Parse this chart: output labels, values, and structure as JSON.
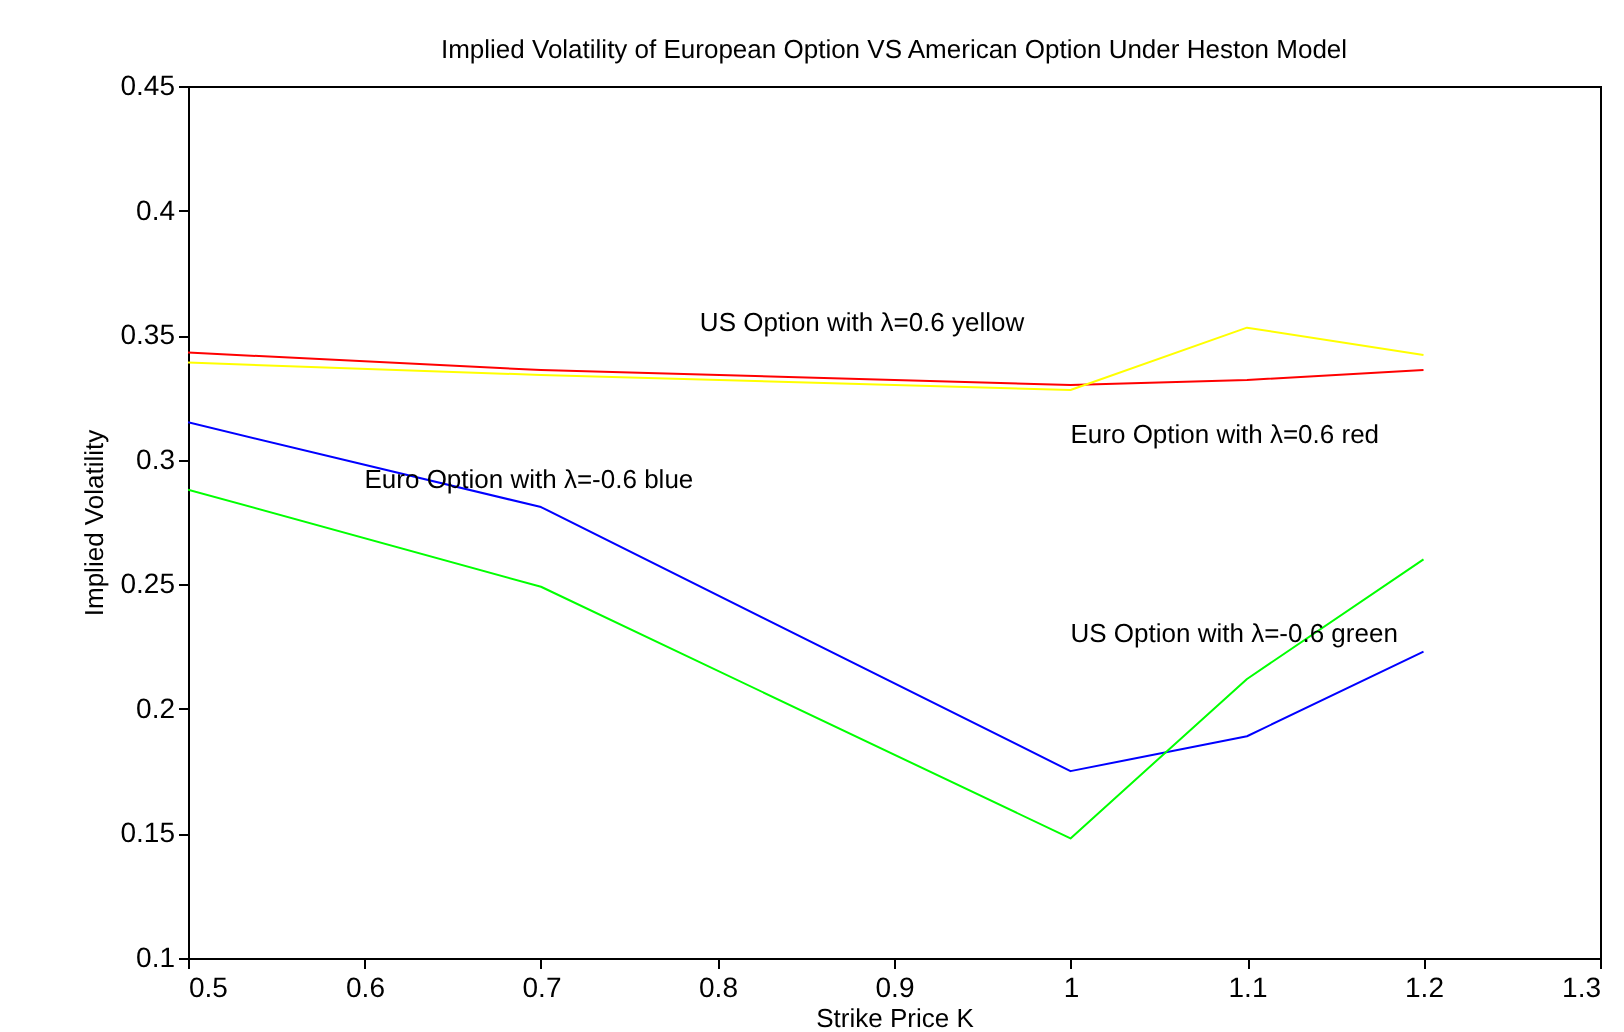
{
  "chart_data": {
    "type": "line",
    "title": "Implied Volatility of European Option VS American Option Under Heston Model",
    "xlabel": "Strike Price K",
    "ylabel": "Implied Volatility",
    "x": [
      0.5,
      0.7,
      1.0,
      1.1,
      1.2
    ],
    "series": [
      {
        "color": "#ff0000",
        "values": [
          0.343,
          0.336,
          0.33,
          0.332,
          0.336
        ]
      },
      {
        "color": "#ffff00",
        "values": [
          0.339,
          0.334,
          0.328,
          0.353,
          0.342
        ]
      },
      {
        "color": "#0000ff",
        "values": [
          0.315,
          0.281,
          0.175,
          0.189,
          0.223
        ]
      },
      {
        "color": "#00ff00",
        "values": [
          0.288,
          0.249,
          0.148,
          0.212,
          0.26
        ]
      }
    ],
    "annotations": [
      "US Option with λ=0.6 yellow",
      "Euro Option with λ=0.6 red",
      "Euro Option with λ=-0.6 blue",
      "US Option with λ=-0.6 green"
    ],
    "xlim": [
      0.5,
      1.3
    ],
    "xticks": [
      0.5,
      0.6,
      0.7,
      0.8,
      0.9,
      1,
      1.1,
      1.2,
      1.3
    ],
    "ylim": [
      0.1,
      0.45
    ],
    "yticks": [
      0.1,
      0.15,
      0.2,
      0.25,
      0.3,
      0.35,
      0.4,
      0.45
    ],
    "grid": false,
    "legend": false,
    "line_style": "solid",
    "marker": "none"
  }
}
